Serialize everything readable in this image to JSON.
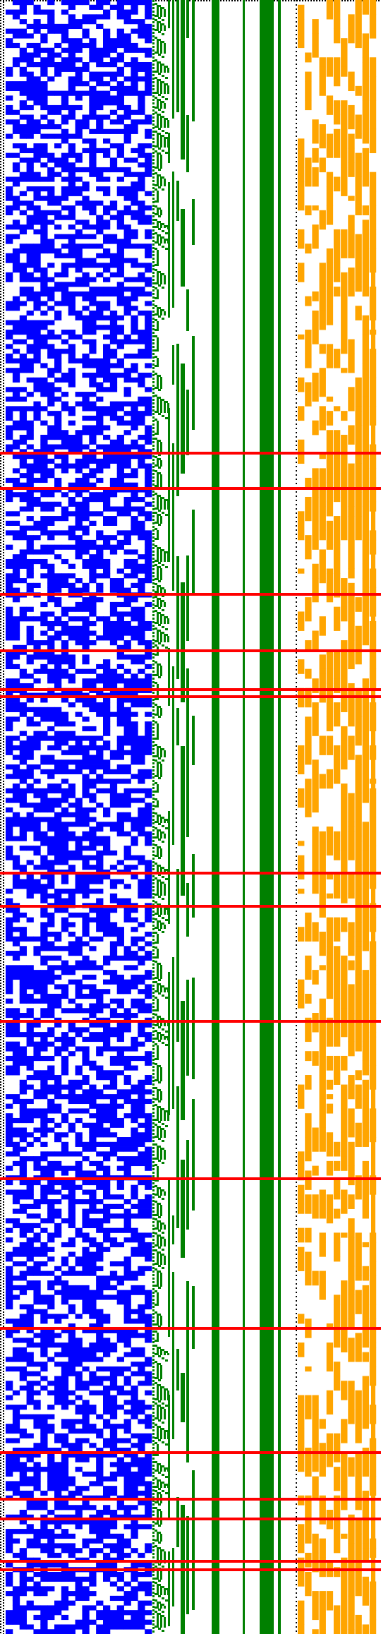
{
  "title": "",
  "colors": {
    "background": "#ffffff",
    "blue": "#0000ff",
    "green": "#008000",
    "orange": "#ffa500",
    "red": "#ff0000",
    "black": "#000000"
  },
  "figure": {
    "rows": 342,
    "blue_columns": 21,
    "orange_columns": 11,
    "blue_density": 0.58,
    "orange_density_low": 0.35,
    "orange_density_high": 0.75
  },
  "red_markers": [
    640,
    690,
    840,
    920,
    975,
    985,
    1235,
    1282,
    1445,
    1668,
    1880,
    2056,
    2122,
    2150,
    2210,
    2222
  ]
}
